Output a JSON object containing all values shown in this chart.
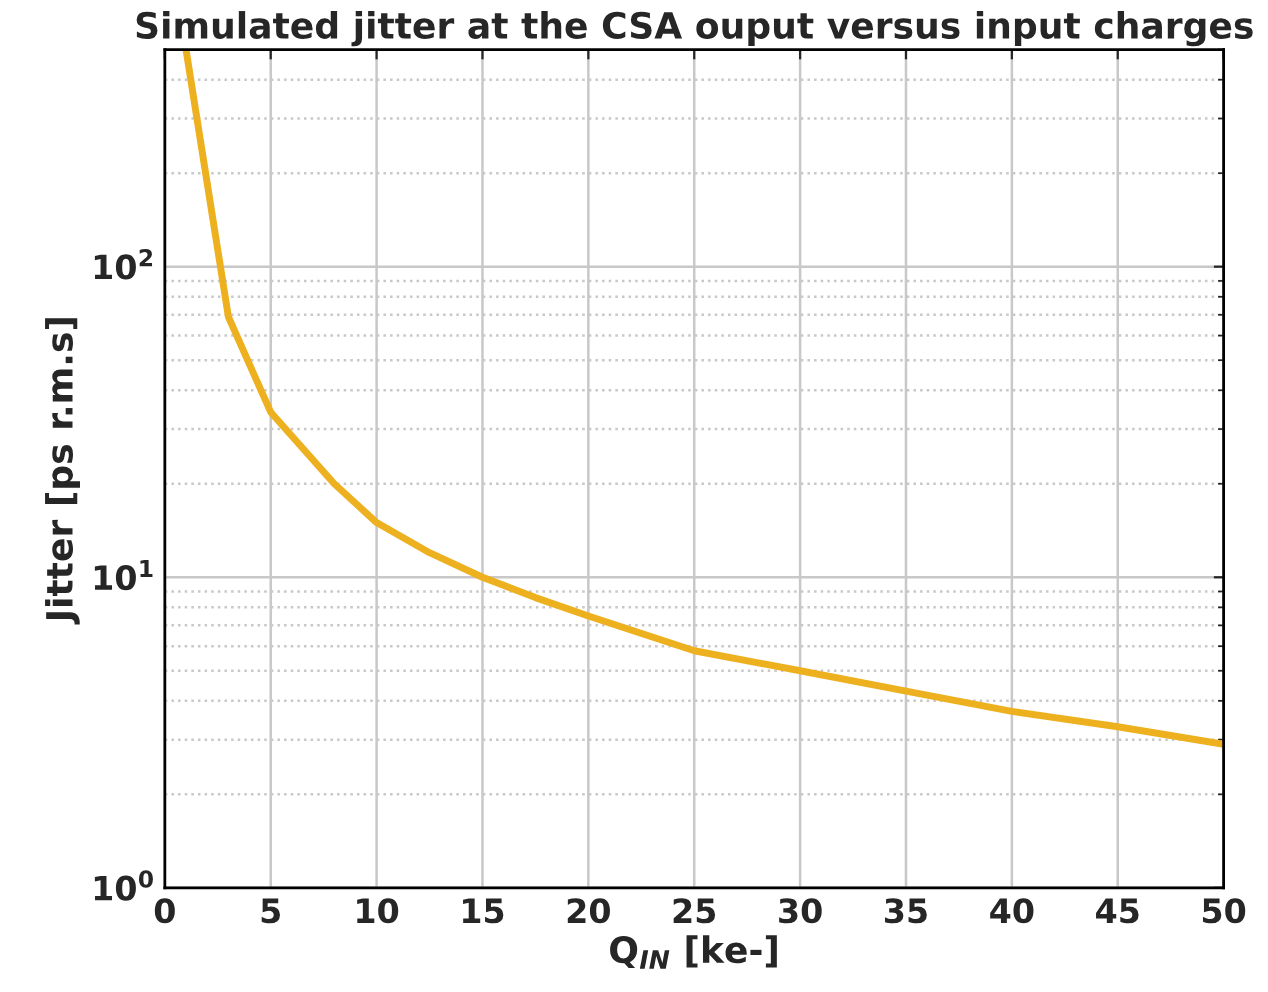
{
  "chart_data": {
    "type": "line",
    "title": "Simulated jitter at the CSA ouput versus input charges",
    "xlabel": "Q$_{IN}$ [ke-]",
    "ylabel": "Jitter [ps r.m.s]",
    "x": [
      1,
      3,
      5,
      8,
      10,
      12.5,
      15,
      17.5,
      20,
      25,
      30,
      35,
      40,
      45,
      50
    ],
    "series": [
      {
        "color": "#edb120",
        "values": [
          500,
          69,
          34,
          20,
          15,
          12,
          10,
          8.6,
          7.5,
          5.8,
          5.0,
          4.3,
          3.7,
          3.3,
          2.9
        ]
      }
    ],
    "log": "y",
    "xlim": [
      0,
      50
    ],
    "ylim": [
      1,
      500
    ],
    "xticks": [
      0,
      5,
      10,
      15,
      20,
      25,
      30,
      35,
      40,
      45,
      50
    ],
    "yticks": [
      {
        "value": 1,
        "label": "10$^{0}$"
      },
      {
        "value": 10,
        "label": "10$^{1}$"
      },
      {
        "value": 100,
        "label": "10$^{2}$"
      }
    ],
    "grid": true,
    "line_style": "solid",
    "marker": "none"
  }
}
